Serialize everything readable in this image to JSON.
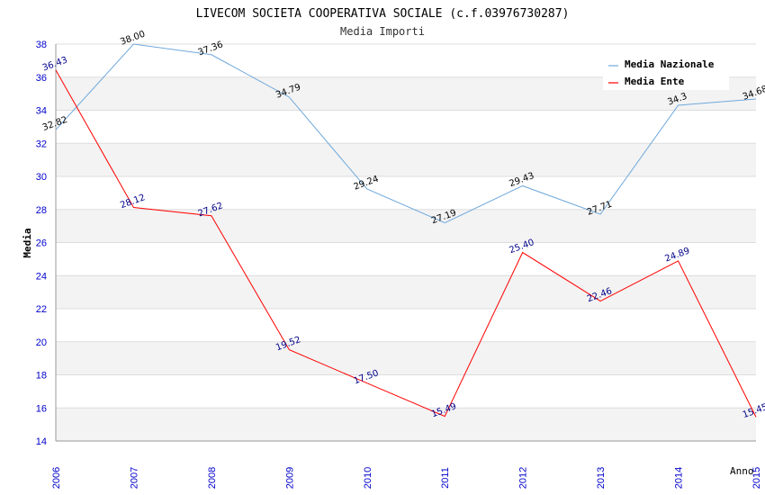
{
  "chart_data": {
    "type": "line",
    "title": "LIVECOM SOCIETA COOPERATIVA SOCIALE (c.f.03976730287)",
    "subtitle": "Media Importi",
    "xlabel": "Anno",
    "ylabel": "Media",
    "x": [
      "2006",
      "2007",
      "2008",
      "2009",
      "2010",
      "2011",
      "2012",
      "2013",
      "2014",
      "2015"
    ],
    "ylim": [
      14,
      38
    ],
    "yticks": [
      "14",
      "16",
      "18",
      "20",
      "22",
      "24",
      "26",
      "28",
      "30",
      "32",
      "34",
      "36",
      "38"
    ],
    "legend_position": "top-right",
    "grid": true,
    "series": [
      {
        "name": "Media Nazionale",
        "color": "#6fa8dc",
        "label_color": "#000000",
        "values": [
          32.82,
          38.0,
          37.36,
          34.79,
          29.24,
          27.19,
          29.43,
          27.71,
          34.3,
          34.68
        ],
        "labels": [
          "32.82",
          "38.00",
          "37.36",
          "34.79",
          "29.24",
          "27.19",
          "29.43",
          "27.71",
          "34.3",
          "34.68"
        ]
      },
      {
        "name": "Media Ente",
        "color": "#ff0000",
        "label_color": "#00008b",
        "values": [
          36.43,
          28.12,
          27.62,
          19.52,
          17.5,
          15.49,
          25.4,
          22.46,
          24.89,
          15.45
        ],
        "labels": [
          "36.43",
          "28.12",
          "27.62",
          "19.52",
          "17.50",
          "15.49",
          "25.40",
          "22.46",
          "24.89",
          "15.45"
        ]
      }
    ]
  }
}
